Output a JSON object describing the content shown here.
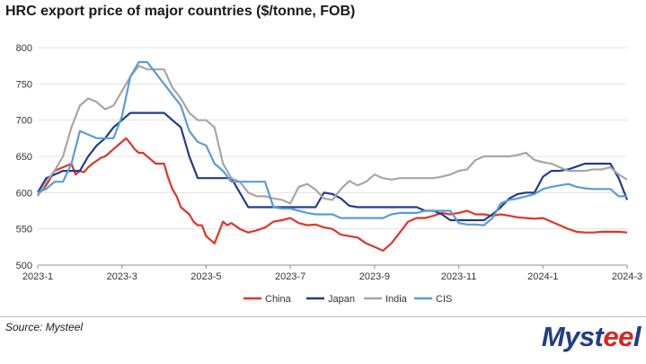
{
  "title": "HRC export price of major countries ($/tonne, FOB)",
  "source": "Source: Mysteel",
  "logo": {
    "text": "Mysteel",
    "text_main": "Myst",
    "text_accent": "ee",
    "text_end": "l",
    "colors": {
      "main": "#1f3d8a",
      "accent": "#d7261e"
    }
  },
  "chart_data": {
    "type": "line",
    "title": "HRC export price of major countries ($/tonne, FOB)",
    "xlabel": "",
    "ylabel": "",
    "ylim": [
      500,
      800
    ],
    "yticks": [
      500,
      550,
      600,
      650,
      700,
      750,
      800
    ],
    "xlim": [
      0,
      14
    ],
    "xticks": [
      {
        "value": 0,
        "label": "2023-1"
      },
      {
        "value": 2,
        "label": "2023-3"
      },
      {
        "value": 4,
        "label": "2023-5"
      },
      {
        "value": 6,
        "label": "2023-7"
      },
      {
        "value": 8,
        "label": "2023-9"
      },
      {
        "value": 10,
        "label": "2023-11"
      },
      {
        "value": 12,
        "label": "2024-1"
      },
      {
        "value": 14,
        "label": "2024-3"
      }
    ],
    "legend_position": "bottom",
    "series": [
      {
        "name": "China",
        "color": "#e03527",
        "x": [
          0.0,
          0.2,
          0.3,
          0.4,
          0.6,
          0.8,
          0.9,
          1.0,
          1.1,
          1.2,
          1.3,
          1.5,
          1.6,
          1.7,
          1.8,
          1.9,
          2.0,
          2.1,
          2.2,
          2.3,
          2.4,
          2.5,
          2.6,
          2.7,
          2.8,
          2.9,
          3.0,
          3.1,
          3.2,
          3.3,
          3.4,
          3.5,
          3.6,
          3.7,
          3.8,
          3.9,
          4.0,
          4.1,
          4.2,
          4.3,
          4.4,
          4.5,
          4.6,
          4.8,
          5.0,
          5.2,
          5.4,
          5.6,
          5.8,
          6.0,
          6.2,
          6.4,
          6.6,
          6.8,
          7.0,
          7.2,
          7.4,
          7.6,
          7.8,
          8.0,
          8.2,
          8.4,
          8.6,
          8.8,
          9.0,
          9.2,
          9.4,
          9.6,
          9.8,
          10.0,
          10.2,
          10.4,
          10.6,
          10.8,
          11.0,
          11.2,
          11.4,
          11.6,
          11.8,
          12.0,
          12.2,
          12.4,
          12.6,
          12.8,
          13.0,
          13.2,
          13.4,
          13.6,
          13.8,
          14.0
        ],
        "values": [
          597,
          610,
          620,
          630,
          635,
          640,
          625,
          630,
          628,
          635,
          640,
          648,
          650,
          655,
          660,
          665,
          670,
          675,
          668,
          660,
          655,
          655,
          650,
          645,
          640,
          640,
          640,
          620,
          605,
          595,
          580,
          575,
          570,
          560,
          555,
          555,
          540,
          535,
          530,
          545,
          560,
          555,
          558,
          550,
          545,
          548,
          552,
          560,
          562,
          565,
          558,
          555,
          556,
          552,
          550,
          542,
          540,
          538,
          530,
          525,
          520,
          530,
          545,
          560,
          565,
          565,
          568,
          572,
          570,
          572,
          575,
          570,
          570,
          568,
          570,
          568,
          566,
          565,
          564,
          565,
          560,
          555,
          550,
          546,
          545,
          545,
          546,
          546,
          546,
          545
        ]
      },
      {
        "name": "Japan",
        "color": "#1f3d8a",
        "x": [
          0.0,
          0.2,
          0.4,
          0.6,
          0.8,
          1.0,
          1.2,
          1.4,
          1.6,
          1.8,
          2.0,
          2.2,
          2.4,
          2.6,
          2.8,
          3.0,
          3.2,
          3.4,
          3.6,
          3.8,
          4.0,
          4.2,
          4.4,
          4.6,
          4.8,
          5.0,
          5.2,
          5.4,
          5.6,
          5.8,
          6.0,
          6.2,
          6.4,
          6.6,
          6.8,
          7.0,
          7.2,
          7.4,
          7.6,
          7.8,
          8.0,
          8.2,
          8.4,
          8.6,
          8.8,
          9.0,
          9.2,
          9.4,
          9.6,
          9.8,
          10.0,
          10.2,
          10.4,
          10.6,
          10.8,
          11.0,
          11.2,
          11.4,
          11.6,
          11.8,
          12.0,
          12.2,
          12.4,
          12.6,
          12.8,
          13.0,
          13.2,
          13.4,
          13.6,
          13.8,
          14.0
        ],
        "values": [
          600,
          620,
          625,
          630,
          630,
          630,
          650,
          665,
          675,
          690,
          700,
          710,
          710,
          710,
          710,
          710,
          700,
          690,
          650,
          620,
          620,
          620,
          620,
          620,
          600,
          580,
          580,
          580,
          580,
          580,
          580,
          580,
          580,
          580,
          600,
          598,
          592,
          582,
          580,
          580,
          580,
          580,
          580,
          580,
          580,
          580,
          575,
          575,
          570,
          562,
          562,
          562,
          562,
          562,
          570,
          580,
          592,
          598,
          600,
          600,
          622,
          630,
          630,
          632,
          636,
          640,
          640,
          640,
          640,
          620,
          590
        ]
      },
      {
        "name": "India",
        "color": "#a6a6a6",
        "x": [
          0.0,
          0.2,
          0.4,
          0.6,
          0.8,
          1.0,
          1.2,
          1.4,
          1.6,
          1.8,
          2.0,
          2.2,
          2.4,
          2.6,
          2.8,
          3.0,
          3.2,
          3.4,
          3.6,
          3.8,
          4.0,
          4.2,
          4.4,
          4.6,
          4.8,
          5.0,
          5.2,
          5.4,
          5.6,
          5.8,
          6.0,
          6.2,
          6.4,
          6.6,
          6.8,
          7.0,
          7.2,
          7.4,
          7.6,
          7.8,
          8.0,
          8.2,
          8.4,
          8.6,
          8.8,
          9.0,
          9.2,
          9.4,
          9.6,
          9.8,
          10.0,
          10.2,
          10.4,
          10.6,
          10.8,
          11.0,
          11.2,
          11.4,
          11.6,
          11.8,
          12.0,
          12.2,
          12.4,
          12.6,
          12.8,
          13.0,
          13.2,
          13.4,
          13.6,
          13.8,
          14.0
        ],
        "values": [
          595,
          615,
          630,
          650,
          690,
          720,
          730,
          725,
          715,
          720,
          740,
          760,
          775,
          770,
          770,
          770,
          745,
          730,
          710,
          700,
          700,
          690,
          640,
          620,
          615,
          600,
          595,
          595,
          592,
          590,
          585,
          608,
          612,
          604,
          592,
          590,
          605,
          616,
          610,
          615,
          625,
          620,
          618,
          620,
          620,
          620,
          620,
          620,
          622,
          625,
          630,
          632,
          645,
          650,
          650,
          650,
          650,
          652,
          655,
          645,
          642,
          640,
          635,
          630,
          630,
          630,
          632,
          632,
          635,
          625,
          618
        ]
      },
      {
        "name": "CIS",
        "color": "#5b9bd5",
        "x": [
          0.0,
          0.2,
          0.4,
          0.6,
          0.8,
          1.0,
          1.2,
          1.4,
          1.6,
          1.8,
          2.0,
          2.2,
          2.4,
          2.6,
          2.8,
          3.0,
          3.2,
          3.4,
          3.6,
          3.8,
          4.0,
          4.2,
          4.4,
          4.6,
          4.8,
          5.0,
          5.2,
          5.4,
          5.6,
          5.8,
          6.0,
          6.2,
          6.4,
          6.6,
          6.8,
          7.0,
          7.2,
          7.4,
          7.6,
          7.8,
          8.0,
          8.2,
          8.4,
          8.6,
          8.8,
          9.0,
          9.2,
          9.4,
          9.6,
          9.8,
          10.0,
          10.2,
          10.4,
          10.6,
          10.8,
          11.0,
          11.2,
          11.4,
          11.6,
          11.8,
          12.0,
          12.2,
          12.4,
          12.6,
          12.8,
          13.0,
          13.2,
          13.4,
          13.6,
          13.8,
          14.0
        ],
        "values": [
          600,
          605,
          615,
          615,
          640,
          685,
          680,
          675,
          675,
          675,
          705,
          760,
          780,
          780,
          765,
          750,
          735,
          720,
          685,
          670,
          665,
          640,
          630,
          615,
          615,
          615,
          615,
          615,
          580,
          578,
          578,
          575,
          572,
          570,
          570,
          570,
          565,
          565,
          565,
          565,
          565,
          565,
          570,
          572,
          572,
          572,
          575,
          575,
          575,
          575,
          558,
          556,
          556,
          555,
          565,
          585,
          590,
          592,
          595,
          598,
          605,
          608,
          610,
          612,
          608,
          606,
          605,
          605,
          605,
          595,
          595
        ]
      }
    ]
  }
}
